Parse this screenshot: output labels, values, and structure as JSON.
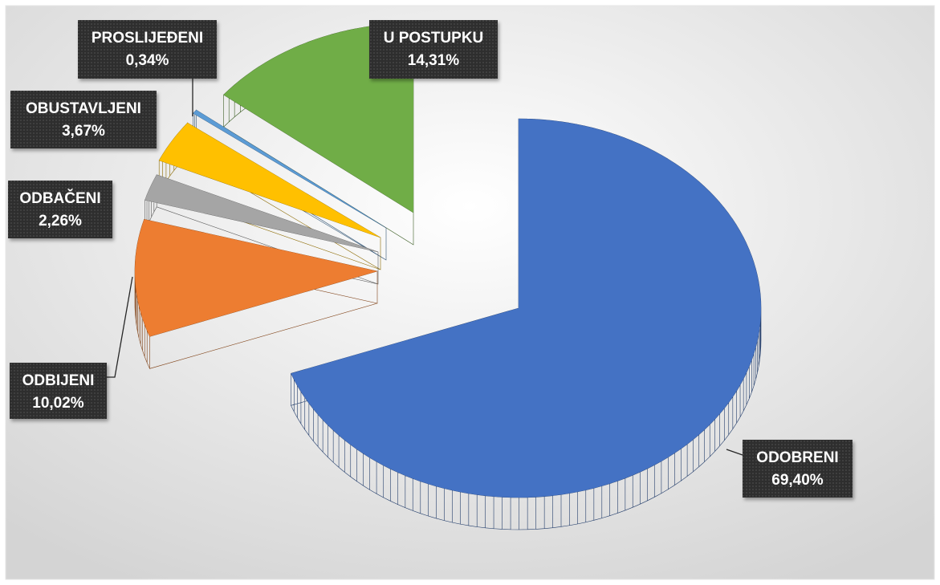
{
  "chart_data": {
    "type": "pie",
    "categories": [
      "ODOBRENI",
      "ODBIJENI",
      "ODBAČENI",
      "OBUSTAVLJENI",
      "PROSLIJEĐENI",
      "U POSTUPKU"
    ],
    "values": [
      69.4,
      10.02,
      2.26,
      3.67,
      0.34,
      14.31
    ],
    "value_labels": [
      "69,40%",
      "10,02%",
      "2,26%",
      "3,67%",
      "0,34%",
      "14,31%"
    ],
    "colors": [
      "#4472c4",
      "#ed7d31",
      "#a5a5a5",
      "#ffc000",
      "#5b9bd5",
      "#70ad47"
    ]
  }
}
